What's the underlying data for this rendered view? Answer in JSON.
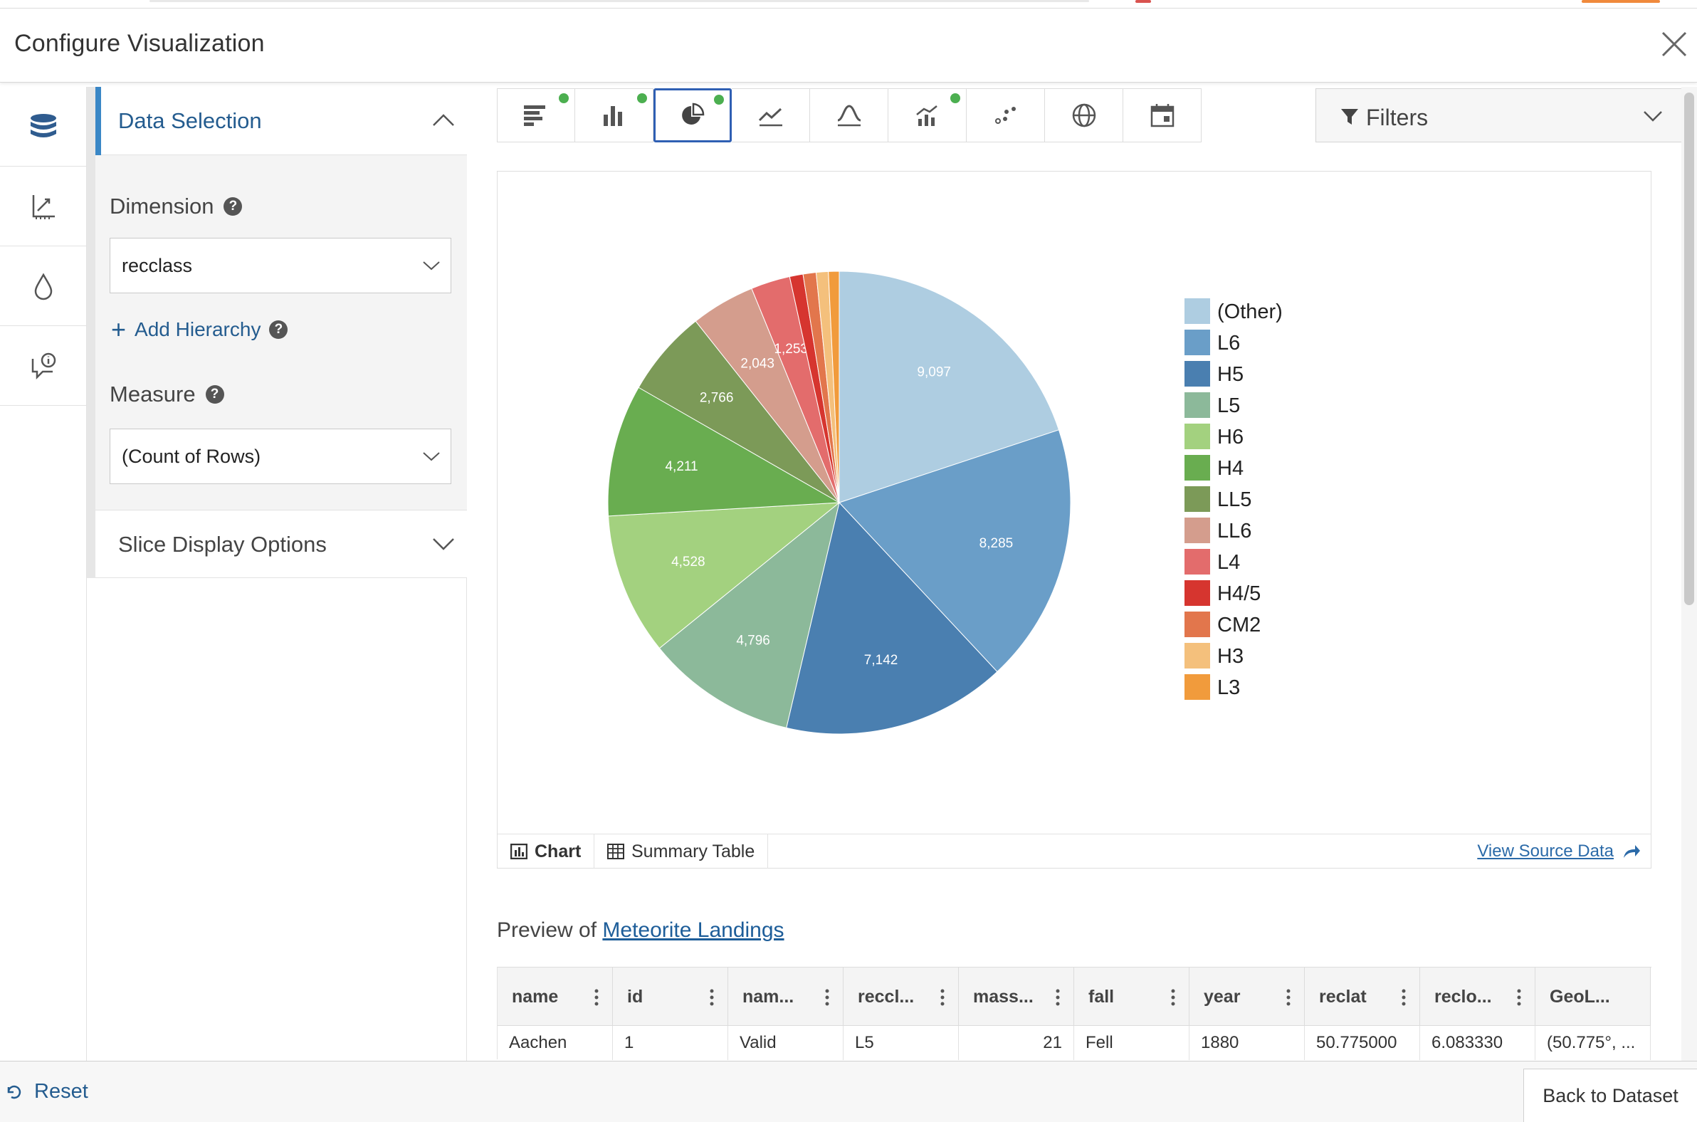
{
  "header": {
    "title": "Configure Visualization"
  },
  "panel": {
    "section_title": "Data Selection",
    "dimension_label": "Dimension",
    "dimension_value": "recclass",
    "add_hierarchy": "Add Hierarchy",
    "measure_label": "Measure",
    "measure_value": "(Count of Rows)",
    "slice_options": "Slice Display Options"
  },
  "rail_icons": [
    "database-icon",
    "axis-chart-icon",
    "droplet-icon",
    "info-comment-icon"
  ],
  "toolbar": {
    "active_index": 2,
    "buttons": [
      {
        "name": "horizontal-bar-chart-icon",
        "dot": true
      },
      {
        "name": "column-chart-icon",
        "dot": true
      },
      {
        "name": "pie-chart-icon",
        "dot": true
      },
      {
        "name": "line-chart-icon",
        "dot": false
      },
      {
        "name": "histogram-icon",
        "dot": false
      },
      {
        "name": "combo-chart-icon",
        "dot": true
      },
      {
        "name": "scatter-chart-icon",
        "dot": false
      },
      {
        "name": "map-globe-icon",
        "dot": false
      },
      {
        "name": "calendar-icon",
        "dot": false
      }
    ],
    "filters_label": "Filters"
  },
  "chart_data": {
    "type": "pie",
    "categories": [
      "(Other)",
      "L6",
      "H5",
      "L5",
      "H6",
      "H4",
      "LL5",
      "LL6",
      "L4",
      "H4/5",
      "CM2",
      "H3",
      "L3"
    ],
    "values": [
      9097,
      8285,
      7142,
      4796,
      4528,
      4211,
      2766,
      2043,
      1253,
      428,
      416,
      386,
      343
    ],
    "data_labels": [
      "9,097",
      "8,285",
      "7,142",
      "4,796",
      "4,528",
      "4,211",
      "2,766",
      "2,043",
      "1,253",
      "",
      "",
      "",
      ""
    ],
    "colors": [
      "#aecde1",
      "#6a9ec8",
      "#4a7fb0",
      "#8cb99a",
      "#a3d17f",
      "#69ad50",
      "#7c9a58",
      "#d49d8d",
      "#e36c6c",
      "#d6352f",
      "#e2764c",
      "#f4c07c",
      "#f19b3c"
    ],
    "legend_position": "right"
  },
  "card": {
    "chart_tab": "Chart",
    "summary_tab": "Summary Table",
    "view_source": "View Source Data"
  },
  "preview": {
    "prefix": "Preview of ",
    "dataset": "Meteorite Landings",
    "columns": [
      "name",
      "id",
      "nam...",
      "reccl...",
      "mass...",
      "fall",
      "year",
      "reclat",
      "reclo...",
      "GeoL..."
    ],
    "row": [
      "Aachen",
      "1",
      "Valid",
      "L5",
      "21",
      "Fell",
      "1880",
      "50.775000",
      "6.083330",
      "(50.775°, ..."
    ]
  },
  "footer": {
    "reset": "Reset",
    "back": "Back to Dataset"
  }
}
